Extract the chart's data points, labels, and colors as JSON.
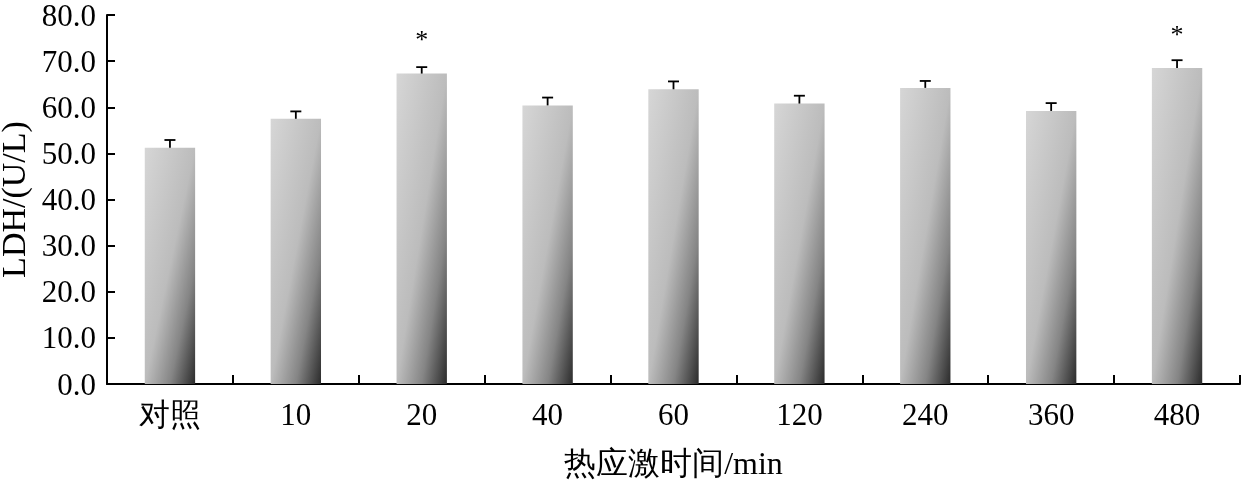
{
  "chart_data": {
    "type": "bar",
    "xlabel": "热应激时间/min",
    "ylabel": "LDH/(U/L)",
    "categories": [
      "对照",
      "10",
      "20",
      "40",
      "60",
      "120",
      "240",
      "360",
      "480"
    ],
    "values": [
      51.2,
      57.5,
      67.3,
      60.4,
      63.9,
      60.8,
      64.2,
      59.2,
      68.5
    ],
    "errors": [
      [
        51.2,
        52.9
      ],
      [
        57.5,
        59.1
      ],
      [
        67.3,
        68.7
      ],
      [
        60.4,
        62.1
      ],
      [
        63.9,
        65.6
      ],
      [
        60.8,
        62.5
      ],
      [
        64.2,
        65.7
      ],
      [
        59.2,
        60.9
      ],
      [
        68.5,
        70.2
      ]
    ],
    "color": "#d6d6d6",
    "ylim": [
      0,
      80
    ],
    "yticks": [
      {
        "value": 0,
        "label": "0.0"
      },
      {
        "value": 10,
        "label": "10.0"
      },
      {
        "value": 20,
        "label": "20.0"
      },
      {
        "value": 30,
        "label": "30.0"
      },
      {
        "value": 40,
        "label": "40.0"
      },
      {
        "value": 50,
        "label": "50.0"
      },
      {
        "value": 60,
        "label": "60.0"
      },
      {
        "value": 70,
        "label": "70.0"
      },
      {
        "value": 80,
        "label": "80.0"
      }
    ],
    "annotations": [
      {
        "text": "*",
        "x": "20",
        "y": 67.3
      },
      {
        "text": "*",
        "x": "480",
        "y": 68.5
      }
    ]
  }
}
